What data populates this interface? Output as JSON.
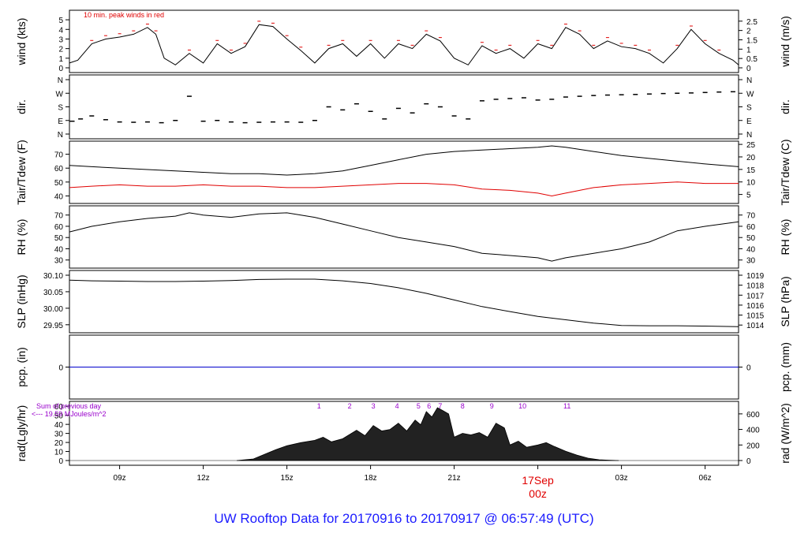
{
  "caption": "UW Rooftop Data for 20170916  to  20170917 @ 06:57:49  (UTC)",
  "x_axis": {
    "tick_labels": [
      "09z",
      "12z",
      "15z",
      "18z",
      "21z",
      "03z",
      "06z"
    ],
    "date_label": "17Sep",
    "date_sub": "00z",
    "date_color": "#e00000"
  },
  "colors": {
    "line": "#000000",
    "dewpoint": "#e00000",
    "precip": "#0000cc",
    "peak": "#e00000",
    "annotation": "#9900cc"
  },
  "chart_data": [
    {
      "type": "line",
      "panel": "wind",
      "ylabel_left": "wind (kts)",
      "ylabel_right": "wind (m/s)",
      "left_ticks": [
        "0",
        "1",
        "2",
        "3",
        "4",
        "5"
      ],
      "right_ticks": [
        "0",
        "0.5",
        "1",
        "1.5",
        "2",
        "2.5"
      ],
      "ylim": [
        0,
        5.5
      ],
      "annotation": "10 min. peak winds in red",
      "x_hours": [
        7.2,
        7.5,
        8.0,
        8.5,
        9.0,
        9.5,
        10.0,
        10.3,
        10.6,
        11.0,
        11.5,
        12.0,
        12.5,
        13.0,
        13.5,
        14.0,
        14.5,
        15.0,
        15.5,
        16.0,
        16.5,
        17.0,
        17.5,
        18.0,
        18.5,
        19.0,
        19.5,
        20.0,
        20.5,
        21.0,
        21.5,
        22.0,
        22.5,
        23.0,
        23.5,
        24.0,
        24.5,
        25.0,
        25.5,
        26.0,
        26.5,
        27.0,
        27.5,
        28.0,
        28.5,
        29.0,
        29.5,
        30.0,
        30.5,
        31.0,
        31.2
      ],
      "values": [
        0.5,
        0.8,
        2.5,
        3.0,
        3.2,
        3.5,
        4.2,
        3.5,
        1.0,
        0.3,
        1.5,
        0.5,
        2.5,
        1.5,
        2.2,
        4.5,
        4.3,
        3.0,
        1.8,
        0.5,
        2.0,
        2.5,
        1.2,
        2.5,
        1.0,
        2.5,
        2.0,
        3.5,
        2.8,
        1.0,
        0.3,
        2.3,
        1.5,
        2.0,
        1.0,
        2.5,
        2.0,
        4.2,
        3.5,
        2.0,
        2.8,
        2.2,
        2.0,
        1.5,
        0.5,
        2.0,
        4.0,
        2.5,
        1.5,
        0.8,
        0.3
      ],
      "peak_label": "-"
    },
    {
      "type": "scatter",
      "panel": "dir",
      "ylabel_left": "dir.",
      "ylabel_right": "dir.",
      "left_ticks": [
        "N",
        "E",
        "S",
        "W",
        "N"
      ],
      "right_ticks": [
        "N",
        "E",
        "S",
        "W",
        "N"
      ],
      "ylim": [
        0,
        360
      ],
      "x_hours": [
        7.3,
        7.6,
        8.0,
        8.5,
        9.0,
        9.5,
        10.0,
        10.5,
        11.0,
        11.5,
        12.0,
        12.5,
        13.0,
        13.5,
        14.0,
        14.5,
        15.0,
        15.5,
        16.0,
        16.5,
        17.0,
        17.5,
        18.0,
        18.5,
        19.0,
        19.5,
        20.0,
        20.5,
        21.0,
        21.5,
        22.0,
        22.5,
        23.0,
        23.5,
        24.0,
        24.5,
        25.0,
        25.5,
        26.0,
        26.5,
        27.0,
        27.5,
        28.0,
        28.5,
        29.0,
        29.5,
        30.0,
        30.5,
        31.0
      ],
      "values": [
        85,
        100,
        120,
        95,
        80,
        78,
        80,
        75,
        90,
        250,
        85,
        90,
        80,
        75,
        78,
        80,
        80,
        78,
        90,
        180,
        160,
        200,
        150,
        100,
        170,
        140,
        200,
        180,
        120,
        100,
        220,
        230,
        235,
        240,
        225,
        230,
        245,
        250,
        255,
        258,
        260,
        262,
        265,
        268,
        270,
        272,
        275,
        278,
        280
      ]
    },
    {
      "type": "line",
      "panel": "tair_tdew",
      "ylabel_left": "Tair/Tdew (F)",
      "ylabel_right": "Tair/Tdew (C)",
      "left_ticks": [
        "40",
        "50",
        "60",
        "70"
      ],
      "right_ticks": [
        "5",
        "10",
        "15",
        "20",
        "25"
      ],
      "ylim": [
        38,
        76
      ],
      "x_hours": [
        7.2,
        8.0,
        9.0,
        10.0,
        11.0,
        12.0,
        13.0,
        14.0,
        15.0,
        16.0,
        17.0,
        18.0,
        19.0,
        20.0,
        21.0,
        22.0,
        23.0,
        24.0,
        24.5,
        25.0,
        26.0,
        27.0,
        28.0,
        29.0,
        30.0,
        31.2
      ],
      "series": [
        {
          "values": [
            62,
            61,
            60,
            59,
            58,
            57,
            56,
            56,
            55,
            56,
            58,
            62,
            66,
            70,
            72,
            73,
            74,
            75,
            76,
            75,
            72,
            69,
            67,
            65,
            63,
            61
          ]
        },
        {
          "values": [
            46,
            47,
            48,
            47,
            47,
            48,
            47,
            47,
            46,
            46,
            47,
            48,
            49,
            49,
            48,
            45,
            44,
            42,
            40,
            42,
            46,
            48,
            49,
            50,
            49,
            49
          ]
        }
      ]
    },
    {
      "type": "line",
      "panel": "rh",
      "ylabel_left": "RH (%)",
      "ylabel_right": "RH (%)",
      "left_ticks": [
        "30",
        "40",
        "50",
        "60",
        "70"
      ],
      "right_ticks": [
        "30",
        "40",
        "50",
        "60",
        "70"
      ],
      "ylim": [
        27,
        74
      ],
      "x_hours": [
        7.2,
        8.0,
        9.0,
        10.0,
        11.0,
        11.5,
        12.0,
        13.0,
        14.0,
        15.0,
        15.5,
        16.0,
        17.0,
        18.0,
        19.0,
        20.0,
        21.0,
        22.0,
        23.0,
        24.0,
        24.5,
        25.0,
        26.0,
        27.0,
        28.0,
        29.0,
        30.0,
        31.2
      ],
      "values": [
        55,
        60,
        64,
        67,
        69,
        72,
        70,
        68,
        71,
        72,
        70,
        68,
        62,
        56,
        50,
        46,
        42,
        36,
        34,
        32,
        29,
        32,
        36,
        40,
        46,
        56,
        60,
        64
      ]
    },
    {
      "type": "line",
      "panel": "slp",
      "ylabel_left": "SLP (inHg)",
      "ylabel_right": "SLP (hPa)",
      "left_ticks": [
        "29.95",
        "30.00",
        "30.05",
        "30.10"
      ],
      "right_ticks": [
        "1014",
        "1015",
        "1016",
        "1017",
        "1018",
        "1019"
      ],
      "ylim": [
        29.94,
        30.1
      ],
      "x_hours": [
        7.2,
        8.0,
        9.0,
        10.0,
        11.0,
        12.0,
        13.0,
        14.0,
        15.0,
        16.0,
        17.0,
        18.0,
        19.0,
        20.0,
        21.0,
        22.0,
        23.0,
        24.0,
        25.0,
        26.0,
        27.0,
        28.0,
        29.0,
        30.0,
        31.2
      ],
      "values": [
        30.085,
        30.083,
        30.082,
        30.081,
        30.081,
        30.082,
        30.084,
        30.087,
        30.088,
        30.088,
        30.083,
        30.075,
        30.062,
        30.045,
        30.025,
        30.005,
        29.99,
        29.975,
        29.965,
        29.955,
        29.948,
        29.947,
        29.947,
        29.946,
        29.944
      ]
    },
    {
      "type": "line",
      "panel": "pcp",
      "ylabel_left": "pcp. (in)",
      "ylabel_right": "pcp. (mm)",
      "left_ticks": [
        "0"
      ],
      "right_ticks": [
        "0"
      ],
      "values": [
        0
      ]
    },
    {
      "type": "area",
      "panel": "rad",
      "ylabel_left": "rad(Lgly/hr)",
      "ylabel_right": "rad (W/m^2)",
      "left_ticks": [
        "0",
        "10",
        "20",
        "30",
        "40",
        "50",
        "60"
      ],
      "right_ticks": [
        "0",
        "200",
        "400",
        "600"
      ],
      "ylim": [
        0,
        700
      ],
      "annotation_line1": "Sum of previous day",
      "annotation_line2": "<--- 19.59 MJoules/m^2",
      "hour_marks": [
        "1",
        "2",
        "3",
        "4",
        "5",
        "6",
        "7",
        "8",
        "9",
        "10",
        "11"
      ],
      "hour_mark_x": [
        16.15,
        17.25,
        18.1,
        18.95,
        19.72,
        20.1,
        20.5,
        21.3,
        22.35,
        23.45,
        25.05
      ],
      "x_hours": [
        13.2,
        13.8,
        14.2,
        14.6,
        15.0,
        15.5,
        16.0,
        16.3,
        16.6,
        17.0,
        17.5,
        17.8,
        18.1,
        18.4,
        18.7,
        19.0,
        19.3,
        19.6,
        19.8,
        20.0,
        20.2,
        20.4,
        20.6,
        20.8,
        21.0,
        21.3,
        21.6,
        21.9,
        22.2,
        22.5,
        22.8,
        23.0,
        23.3,
        23.6,
        24.0,
        24.3,
        24.6,
        25.0,
        25.4,
        25.8,
        26.2,
        26.6,
        26.9
      ],
      "values": [
        0,
        20,
        80,
        140,
        190,
        230,
        260,
        300,
        240,
        280,
        390,
        320,
        450,
        380,
        400,
        480,
        380,
        520,
        460,
        630,
        560,
        680,
        640,
        600,
        300,
        350,
        330,
        360,
        300,
        480,
        420,
        200,
        250,
        170,
        200,
        230,
        180,
        120,
        70,
        30,
        10,
        3,
        0
      ]
    }
  ]
}
